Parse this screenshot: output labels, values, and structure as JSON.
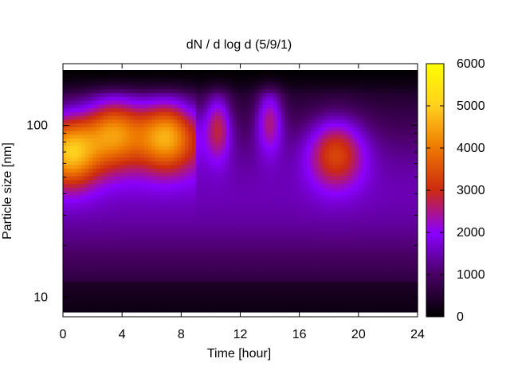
{
  "chart_data": {
    "type": "heatmap",
    "title": "dN / d log d (5/9/1)",
    "xlabel": "Time [hour]",
    "ylabel": "Particle size [nm]",
    "xlim": [
      0,
      24
    ],
    "ylim": [
      8.2,
      210
    ],
    "y_scale": "log",
    "x_ticks": [
      0,
      4,
      8,
      12,
      16,
      20,
      24
    ],
    "y_tick_labels": [
      {
        "value": 10,
        "label": "10"
      },
      {
        "value": 100,
        "label": "100"
      }
    ],
    "colorbar": {
      "range": [
        0,
        6000
      ],
      "ticks": [
        0,
        1000,
        2000,
        3000,
        4000,
        5000,
        6000
      ],
      "palette": "black-purple-red-orange-yellow"
    },
    "mode_centers_nm": [
      {
        "time": 0.5,
        "diameter": 70,
        "value": 4300
      },
      {
        "time": 3.5,
        "diameter": 95,
        "value": 3900
      },
      {
        "time": 7.0,
        "diameter": 90,
        "value": 4200
      },
      {
        "time": 10.5,
        "diameter": 100,
        "value": 3300
      },
      {
        "time": 14.0,
        "diameter": 110,
        "value": 3200
      },
      {
        "time": 18.5,
        "diameter": 70,
        "value": 3600
      }
    ],
    "colors": {
      "c0": "#000000",
      "c1": "#4a0066",
      "c2": "#8a00ff",
      "c3": "#cc2a10",
      "c4": "#ee7a00",
      "c5": "#ffcf1e",
      "c6": "#ffff00"
    }
  }
}
